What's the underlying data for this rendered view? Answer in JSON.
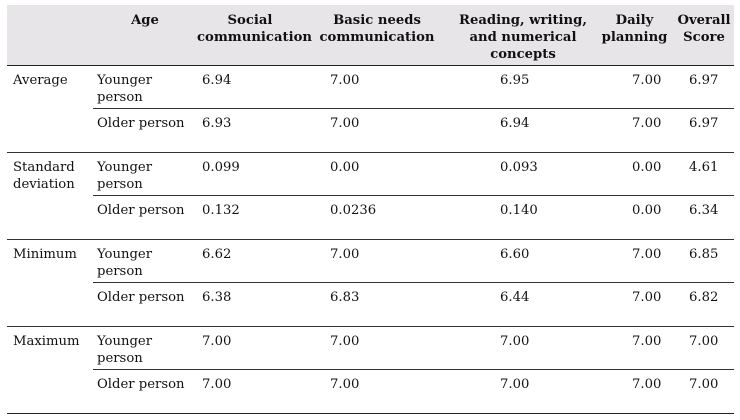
{
  "table": {
    "headers": {
      "stat": "",
      "age": "Age",
      "social": "Social communication",
      "basic": "Basic needs communication",
      "reading": "Reading, writing, and numerical concepts",
      "daily": "Daily planning",
      "overall": "Overall Score"
    },
    "groups": [
      {
        "label": "Average",
        "rows": [
          {
            "age": "Younger person",
            "social": "6.94",
            "basic": "7.00",
            "reading": "6.95",
            "daily": "7.00",
            "overall": "6.97"
          },
          {
            "age": "Older person",
            "social": "6.93",
            "basic": "7.00",
            "reading": "6.94",
            "daily": "7.00",
            "overall": "6.97"
          }
        ]
      },
      {
        "label": "Standard deviation",
        "rows": [
          {
            "age": "Younger person",
            "social": "0.099",
            "basic": "0.00",
            "reading": "0.093",
            "daily": "0.00",
            "overall": "4.61"
          },
          {
            "age": "Older person",
            "social": "0.132",
            "basic": "0.0236",
            "reading": "0.140",
            "daily": "0.00",
            "overall": "6.34"
          }
        ]
      },
      {
        "label": "Minimum",
        "rows": [
          {
            "age": "Younger person",
            "social": "6.62",
            "basic": "7.00",
            "reading": "6.60",
            "daily": "7.00",
            "overall": "6.85"
          },
          {
            "age": "Older person",
            "social": "6.38",
            "basic": "6.83",
            "reading": "6.44",
            "daily": "7.00",
            "overall": "6.82"
          }
        ]
      },
      {
        "label": "Maximum",
        "rows": [
          {
            "age": "Younger person",
            "social": "7.00",
            "basic": "7.00",
            "reading": "7.00",
            "daily": "7.00",
            "overall": "7.00"
          },
          {
            "age": "Older person",
            "social": "7.00",
            "basic": "7.00",
            "reading": "7.00",
            "daily": "7.00",
            "overall": "7.00"
          }
        ]
      }
    ]
  }
}
